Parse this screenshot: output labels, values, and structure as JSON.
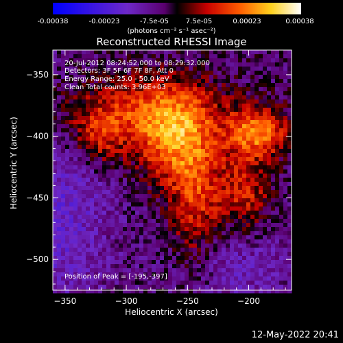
{
  "colorbar": {
    "ticks": [
      "-0.00038",
      "-0.00023",
      "-7.5e-05",
      "7.5e-05",
      "0.00023",
      "0.00038"
    ],
    "label": "(photons cm⁻² s⁻¹ asec⁻²)",
    "range": [
      -0.00038,
      0.00038
    ]
  },
  "annotations": {
    "time": "20-Jul-2012 08:24:52.000 to 08:29:32.000",
    "detectors": "Detectors: 3F 5F 6F 7F 8F, Att 0",
    "energy": "Energy Range: 25.0 - 50.0 keV",
    "clean": "Clean     Total counts: 3.96E+03",
    "peak": "Position of Peak = [-195,-397]"
  },
  "datestamp": "12-May-2022 20:41",
  "chart_data": {
    "type": "heatmap",
    "title": "Reconstructed RHESSI Image",
    "xlabel": "Heliocentric X (arcsec)",
    "ylabel": "Heliocentric Y (arcsec)",
    "xlim": [
      -360,
      -165
    ],
    "ylim": [
      -525,
      -330
    ],
    "xticks": [
      -350,
      -300,
      -250,
      -200
    ],
    "yticks": [
      -350,
      -400,
      -450,
      -500
    ],
    "xtick_labels": [
      "−350",
      "−300",
      "−250",
      "−200"
    ],
    "ytick_labels": [
      "−350",
      "−400",
      "−450",
      "−500"
    ],
    "peak": [
      -195,
      -397
    ],
    "value_range": [
      -0.00038,
      0.00038
    ]
  }
}
